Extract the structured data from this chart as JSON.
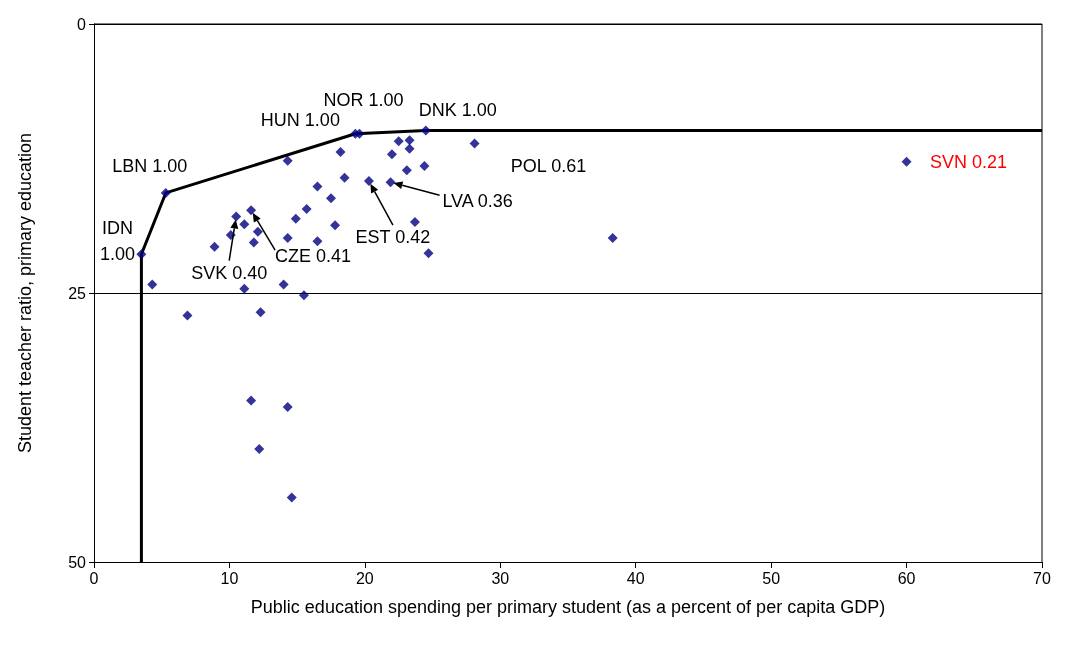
{
  "chart_data": {
    "type": "scatter",
    "xlabel": "Public education spending per primary student (as a percent of per capita GDP)",
    "ylabel": "Student teacher ratio, primary education",
    "xlim": [
      0,
      70
    ],
    "xticks": [
      0,
      10,
      20,
      30,
      40,
      50,
      60,
      70
    ],
    "ylim": [
      50,
      0
    ],
    "yticks": [
      0,
      25,
      50
    ],
    "grid": "y",
    "marker": "diamond",
    "series": [
      {
        "color": "#000080",
        "x": [
          3.5,
          4.3,
          5.3,
          8.9,
          10.1,
          10.5,
          11.1,
          11.6,
          12.1,
          11.8,
          11.1,
          14.3,
          14.3,
          14.0,
          15.5,
          14.9,
          15.7,
          16.5,
          16.5,
          17.5,
          17.8,
          18.2,
          18.5,
          19.3,
          19.6,
          20.3,
          21.9,
          22.0,
          22.5,
          23.3,
          23.3,
          24.5,
          23.1,
          24.4,
          28.1,
          23.7,
          24.7,
          6.9,
          12.3,
          38.3,
          60.0,
          11.6,
          14.3,
          12.2,
          14.6
        ],
        "values": [
          21.4,
          24.2,
          15.7,
          20.7,
          19.6,
          17.9,
          18.6,
          17.3,
          19.3,
          20.3,
          24.6,
          12.7,
          19.9,
          24.2,
          25.2,
          18.1,
          17.2,
          15.1,
          20.2,
          16.2,
          18.7,
          11.9,
          14.3,
          10.2,
          10.2,
          14.6,
          14.7,
          12.1,
          10.9,
          10.8,
          11.6,
          9.9,
          13.6,
          13.2,
          11.1,
          18.4,
          21.3,
          27.1,
          26.8,
          19.9,
          12.8,
          35.0,
          35.6,
          39.5,
          44.0
        ]
      },
      {
        "type": "line",
        "color": "#000000",
        "marker": "none",
        "line_style": "solid",
        "x": [
          3.5,
          3.5,
          5.3,
          19.3,
          24.5,
          70
        ],
        "values": [
          50,
          21.4,
          15.7,
          10.2,
          9.9,
          9.9
        ]
      }
    ],
    "annotations": [
      {
        "text": "IDN 1.00",
        "x": 3.5,
        "y": 21.4
      },
      {
        "text": "LBN 1.00",
        "x": 5.3,
        "y": 15.7
      },
      {
        "text": "HUN 1.00",
        "x": 19.3,
        "y": 10.2
      },
      {
        "text": "NOR 1.00",
        "x": 19.6,
        "y": 10.2
      },
      {
        "text": "DNK 1.00",
        "x": 24.5,
        "y": 9.9
      },
      {
        "text": "POL 0.61",
        "x": 28.1,
        "y": 11.1
      },
      {
        "text": "SVN 0.21",
        "x": 60.0,
        "y": 12.8
      },
      {
        "text": "LVA 0.36",
        "x": 21.9,
        "y": 14.7
      },
      {
        "text": "EST 0.42",
        "x": 20.3,
        "y": 14.6
      },
      {
        "text": "CZE 0.41",
        "x": 11.6,
        "y": 17.3
      },
      {
        "text": "SVK 0.40",
        "x": 10.5,
        "y": 17.9
      }
    ]
  }
}
